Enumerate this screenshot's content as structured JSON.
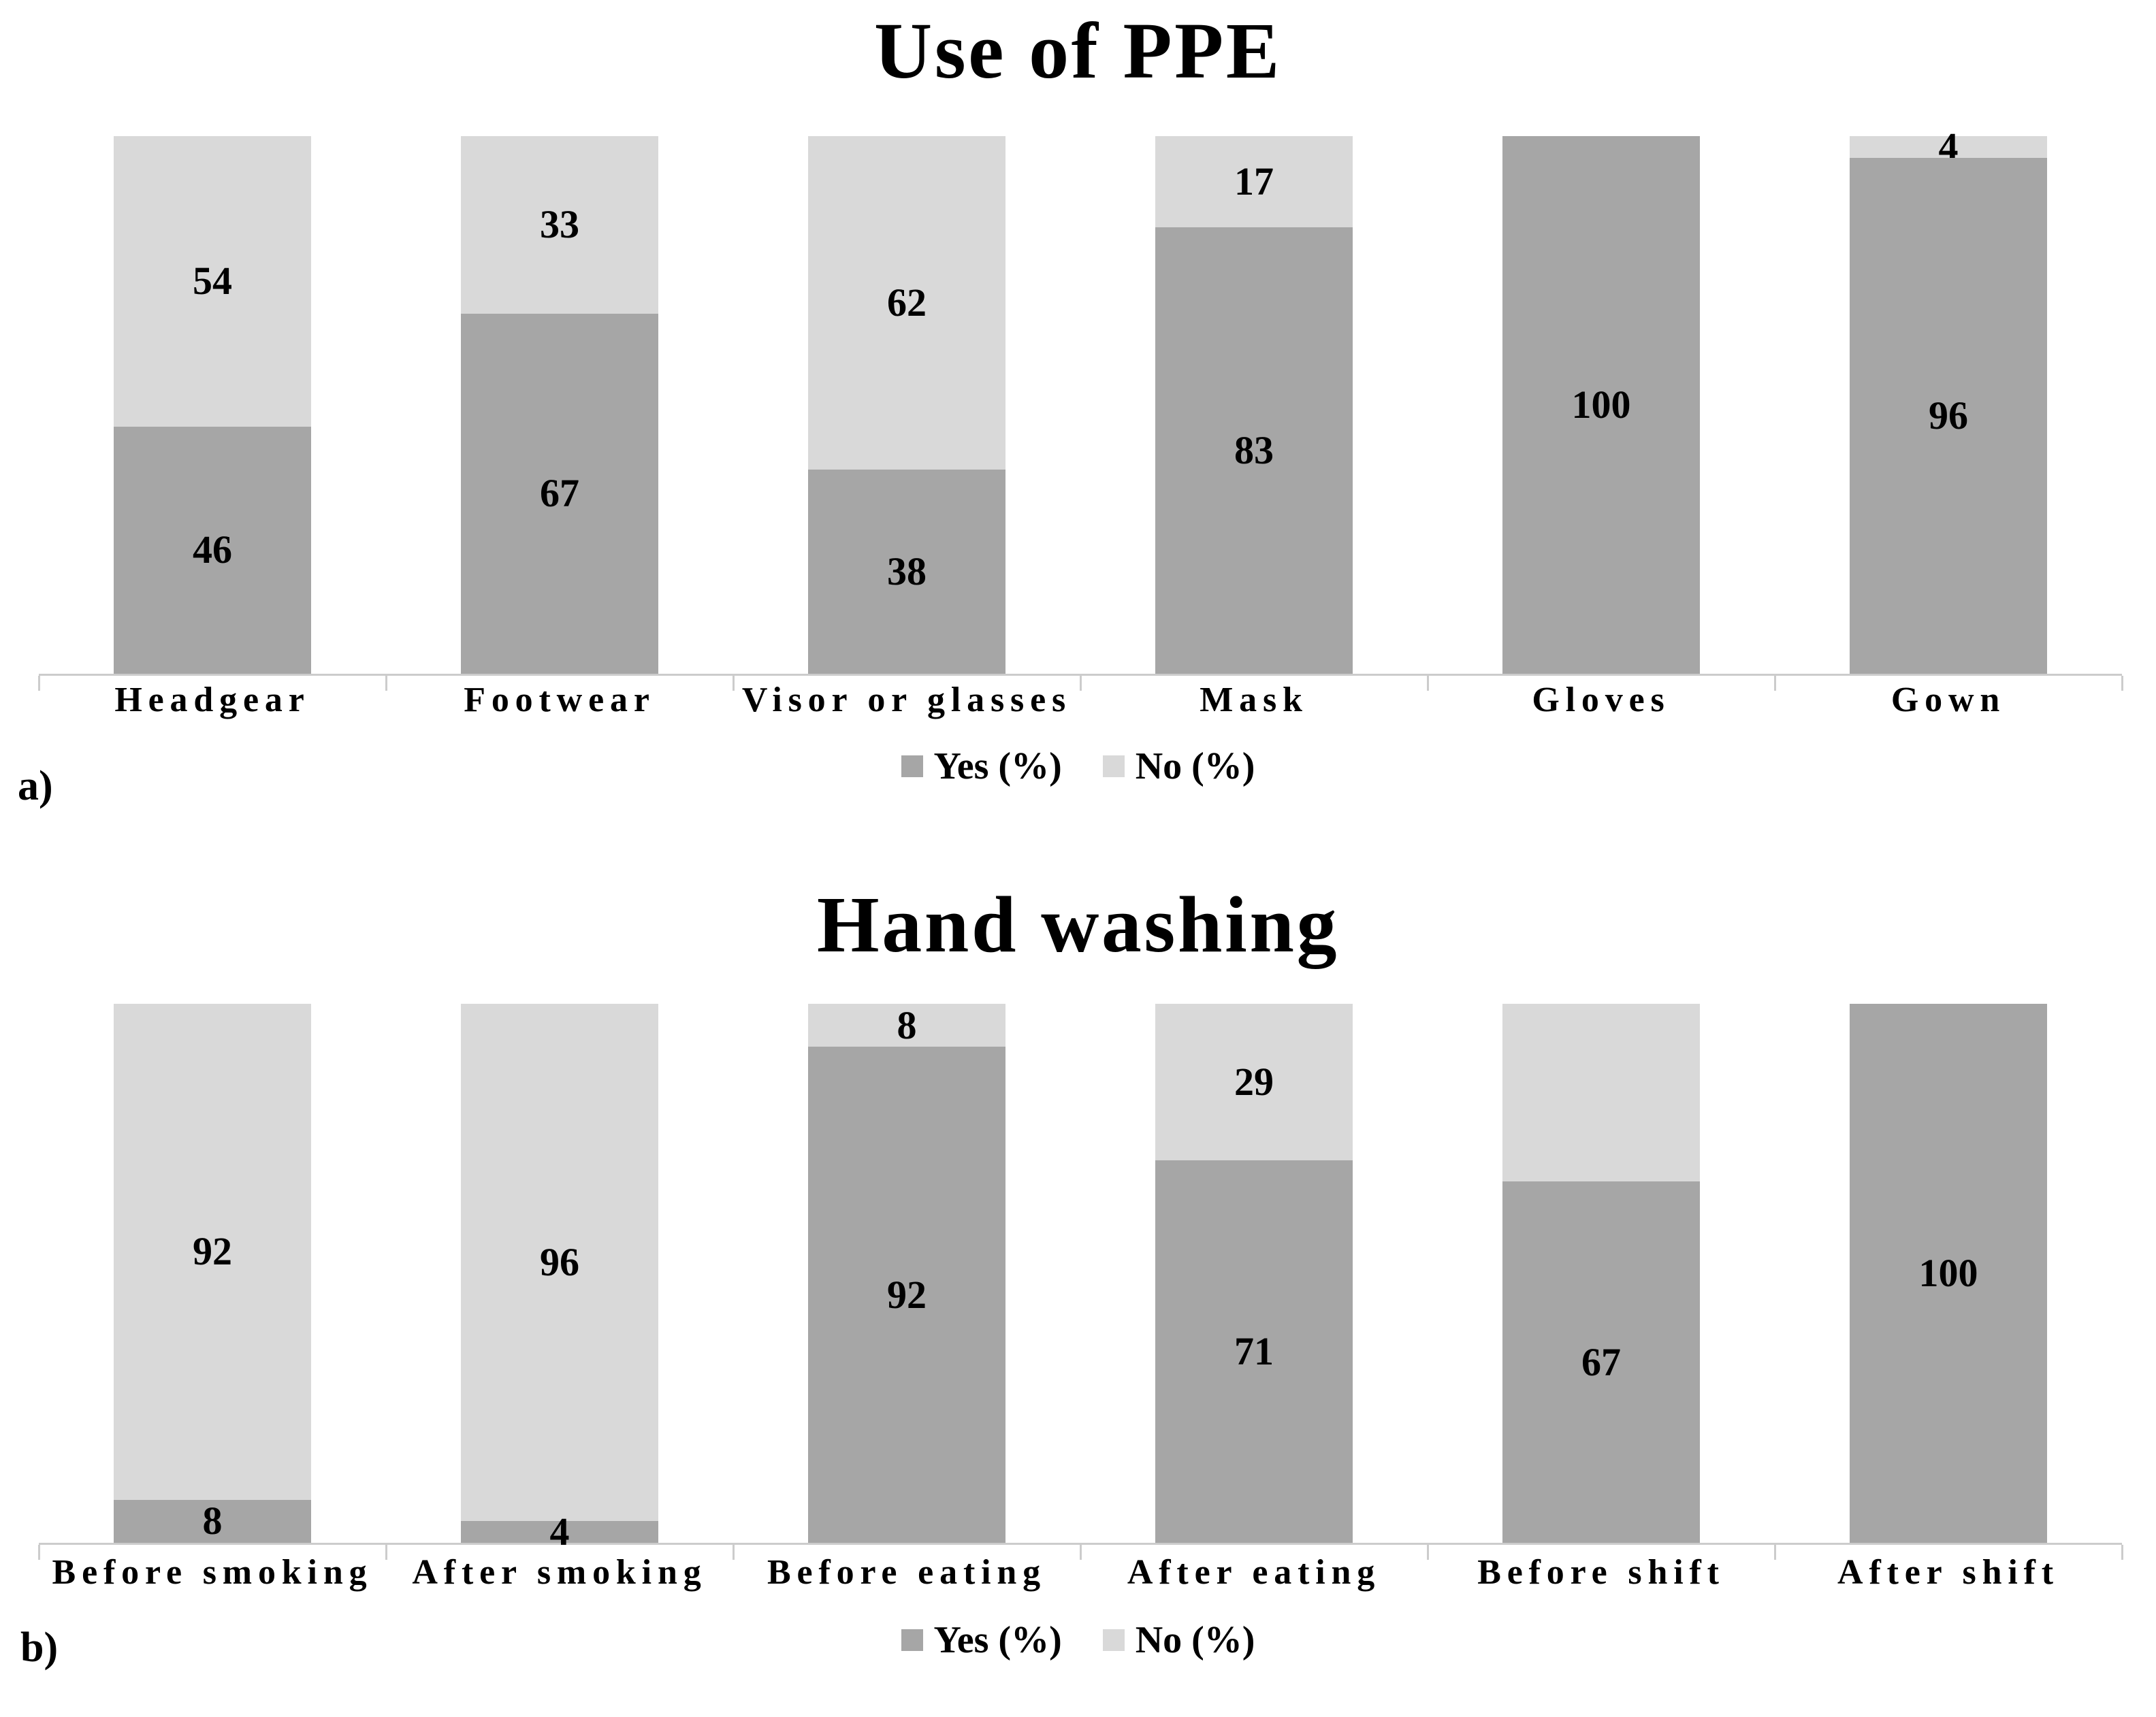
{
  "figure": {
    "background": "#ffffff"
  },
  "colors": {
    "yes": "#a6a6a6",
    "no": "#d9d9d9",
    "axis": "#cccccc",
    "text": "#000000"
  },
  "chart_data": [
    {
      "type": "bar",
      "stacked": true,
      "orientation": "vertical",
      "title": "Use of PPE",
      "panel_label": "a)",
      "categories": [
        "Headgear",
        "Footwear",
        "Visor or glasses",
        "Mask",
        "Gloves",
        "Gown"
      ],
      "series": [
        {
          "name": "Yes (%)",
          "color_key": "yes",
          "values": [
            46,
            67,
            38,
            83,
            100,
            96
          ],
          "data_labels": [
            "46",
            "67",
            "38",
            "83",
            "100",
            "96"
          ]
        },
        {
          "name": "No (%)",
          "color_key": "no",
          "values": [
            54,
            33,
            62,
            17,
            0,
            4
          ],
          "data_labels": [
            "54",
            "33",
            "62",
            "17",
            "",
            "4"
          ]
        }
      ],
      "ylim": [
        0,
        100
      ],
      "y_axis_visible": false,
      "gridlines": false,
      "legend_position": "bottom",
      "legend": [
        {
          "label": "Yes (%)",
          "color_key": "yes"
        },
        {
          "label": "No (%)",
          "color_key": "no"
        }
      ]
    },
    {
      "type": "bar",
      "stacked": true,
      "orientation": "vertical",
      "title": "Hand washing",
      "panel_label": "b)",
      "categories": [
        "Before smoking",
        "After smoking",
        "Before eating",
        "After eating",
        "Before shift",
        "After shift"
      ],
      "series": [
        {
          "name": "Yes (%)",
          "color_key": "yes",
          "values": [
            8,
            4,
            92,
            71,
            67,
            100
          ],
          "data_labels": [
            "8",
            "4",
            "92",
            "71",
            "67",
            "100"
          ]
        },
        {
          "name": "No (%)",
          "color_key": "no",
          "values": [
            92,
            96,
            8,
            29,
            33,
            0
          ],
          "data_labels": [
            "92",
            "96",
            "8",
            "29",
            "",
            ""
          ]
        }
      ],
      "ylim": [
        0,
        100
      ],
      "y_axis_visible": false,
      "gridlines": false,
      "legend_position": "bottom",
      "legend": [
        {
          "label": "Yes (%)",
          "color_key": "yes"
        },
        {
          "label": "No (%)",
          "color_key": "no"
        }
      ]
    }
  ]
}
